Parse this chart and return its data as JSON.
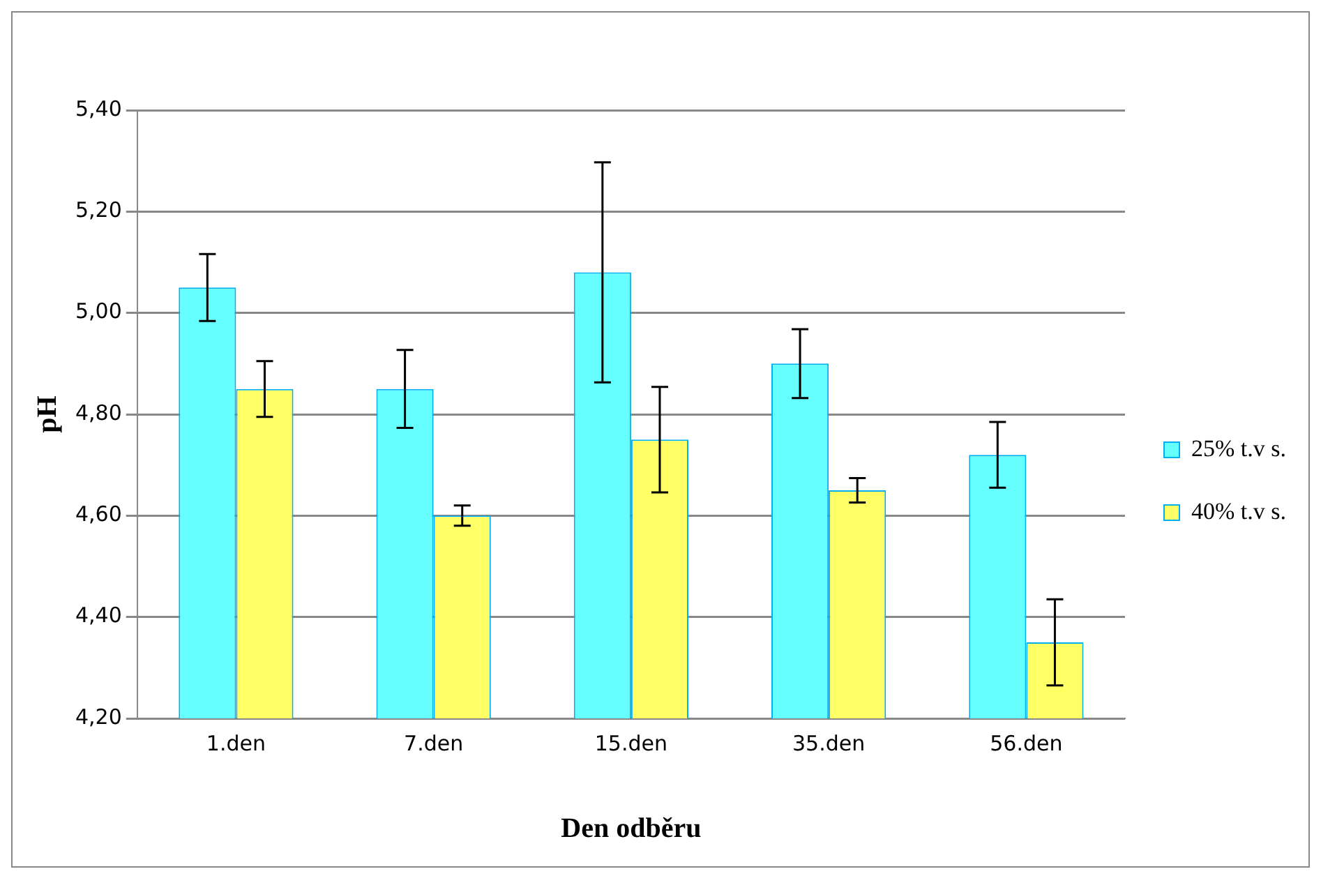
{
  "chart_data": {
    "type": "bar",
    "xlabel": "Den odběru",
    "ylabel": "pH",
    "categories": [
      "1.den",
      "7.den",
      "15.den",
      "35.den",
      "56.den"
    ],
    "series": [
      {
        "name": "25% t.v s.",
        "color": "#66ffff",
        "values": [
          5.05,
          4.85,
          5.08,
          4.9,
          4.72
        ],
        "errors": [
          0.066,
          0.077,
          0.217,
          0.068,
          0.065
        ]
      },
      {
        "name": "40% t.v s.",
        "color": "#ffff66",
        "values": [
          4.85,
          4.6,
          4.75,
          4.65,
          4.35
        ],
        "errors": [
          0.055,
          0.02,
          0.104,
          0.024,
          0.085
        ]
      }
    ],
    "ylim": [
      4.2,
      5.4
    ],
    "yticks": [
      {
        "value": 4.2,
        "label": "4,20"
      },
      {
        "value": 4.4,
        "label": "4,40"
      },
      {
        "value": 4.6,
        "label": "4,60"
      },
      {
        "value": 4.8,
        "label": "4,80"
      },
      {
        "value": 5.0,
        "label": "5,00"
      },
      {
        "value": 5.2,
        "label": "5,20"
      },
      {
        "value": 5.4,
        "label": "5,40"
      }
    ],
    "grid": "y",
    "legend": "right"
  }
}
